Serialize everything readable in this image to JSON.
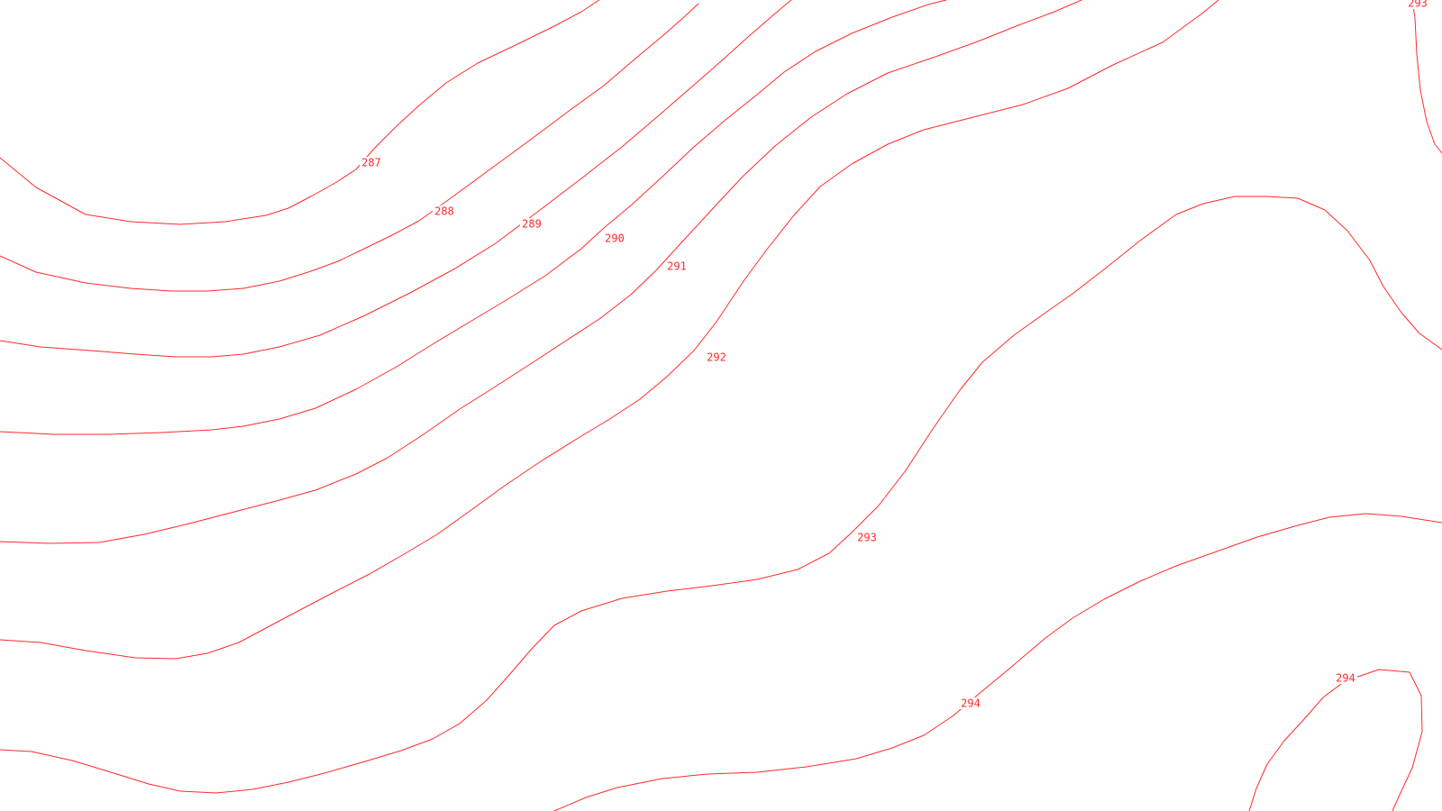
{
  "map": {
    "line_color": "#ff2a2a",
    "label_color": "#ff2a2a",
    "background_color": "#ffffff",
    "contour_labels": {
      "c287": "287",
      "c288": "288",
      "c289": "289",
      "c290": "290",
      "c291": "291",
      "c292": "292",
      "c293a": "293",
      "c293b": "293",
      "c294a": "294",
      "c294b": "294"
    }
  }
}
